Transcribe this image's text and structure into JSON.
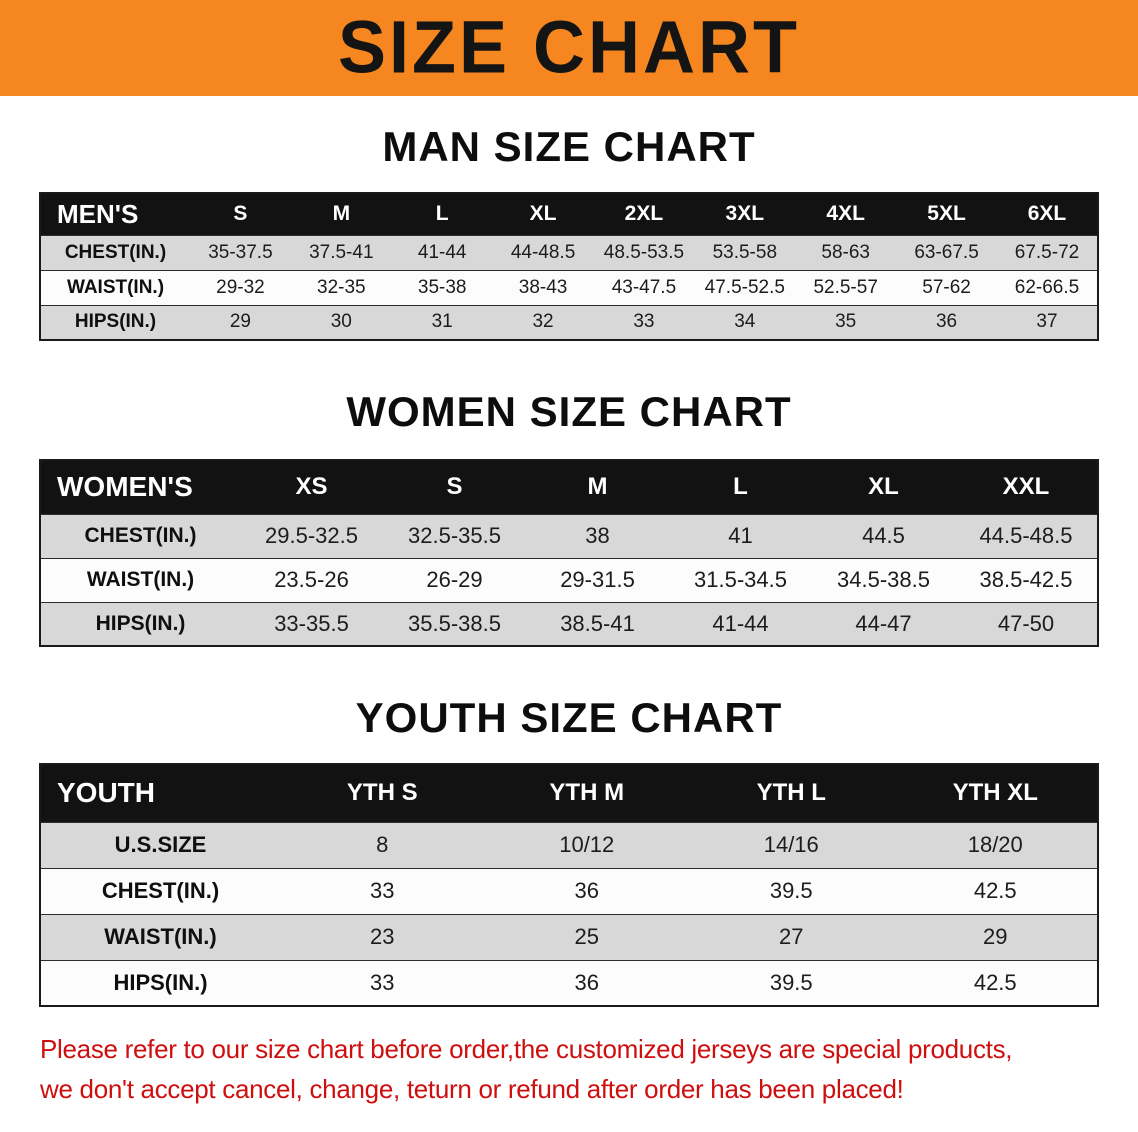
{
  "banner": {
    "title": "SIZE CHART"
  },
  "colors": {
    "banner_bg": "#f6861f",
    "table_header_bg": "#121212",
    "row_shade": "#d8d8d8",
    "footer_text": "#cf0e0e"
  },
  "sections": [
    {
      "heading": "MAN SIZE CHART",
      "table": {
        "header": [
          "MEN'S",
          "S",
          "M",
          "L",
          "XL",
          "2XL",
          "3XL",
          "4XL",
          "5XL",
          "6XL"
        ],
        "rows": [
          {
            "label": "CHEST(IN.)",
            "values": [
              "35-37.5",
              "37.5-41",
              "41-44",
              "44-48.5",
              "48.5-53.5",
              "53.5-58",
              "58-63",
              "63-67.5",
              "67.5-72"
            ]
          },
          {
            "label": "WAIST(IN.)",
            "values": [
              "29-32",
              "32-35",
              "35-38",
              "38-43",
              "43-47.5",
              "47.5-52.5",
              "52.5-57",
              "57-62",
              "62-66.5"
            ]
          },
          {
            "label": "HIPS(IN.)",
            "values": [
              "29",
              "30",
              "31",
              "32",
              "33",
              "34",
              "35",
              "36",
              "37"
            ]
          }
        ]
      }
    },
    {
      "heading": "WOMEN SIZE CHART",
      "table": {
        "header": [
          "WOMEN'S",
          "XS",
          "S",
          "M",
          "L",
          "XL",
          "XXL"
        ],
        "rows": [
          {
            "label": "CHEST(IN.)",
            "values": [
              "29.5-32.5",
              "32.5-35.5",
              "38",
              "41",
              "44.5",
              "44.5-48.5"
            ]
          },
          {
            "label": "WAIST(IN.)",
            "values": [
              "23.5-26",
              "26-29",
              "29-31.5",
              "31.5-34.5",
              "34.5-38.5",
              "38.5-42.5"
            ]
          },
          {
            "label": "HIPS(IN.)",
            "values": [
              "33-35.5",
              "35.5-38.5",
              "38.5-41",
              "41-44",
              "44-47",
              "47-50"
            ]
          }
        ]
      }
    },
    {
      "heading": "YOUTH SIZE CHART",
      "table": {
        "header": [
          "YOUTH",
          "YTH S",
          "YTH M",
          "YTH L",
          "YTH XL"
        ],
        "rows": [
          {
            "label": "U.S.SIZE",
            "values": [
              "8",
              "10/12",
              "14/16",
              "18/20"
            ]
          },
          {
            "label": "CHEST(IN.)",
            "values": [
              "33",
              "36",
              "39.5",
              "42.5"
            ]
          },
          {
            "label": "WAIST(IN.)",
            "values": [
              "23",
              "25",
              "27",
              "29"
            ]
          },
          {
            "label": "HIPS(IN.)",
            "values": [
              "33",
              "36",
              "39.5",
              "42.5"
            ]
          }
        ]
      }
    }
  ],
  "footer": {
    "line1": "Please refer to our size chart before order,the customized jerseys are special products,",
    "line2": "we don't accept cancel, change, teturn or refund after order has been placed!"
  }
}
